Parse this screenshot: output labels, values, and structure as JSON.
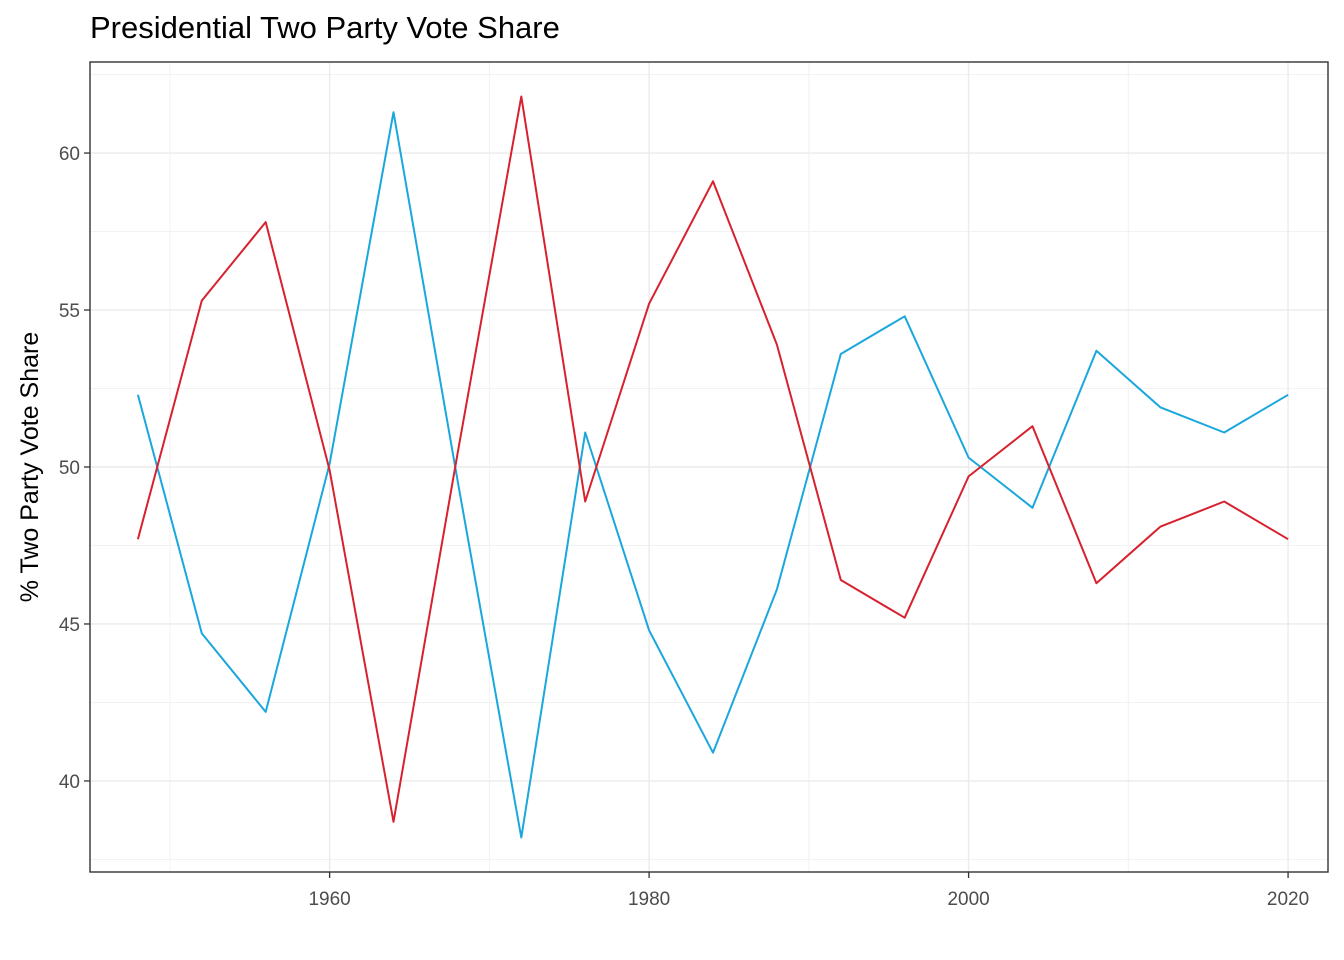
{
  "chart_data": {
    "type": "line",
    "title": "Presidential Two Party Vote Share",
    "xlabel": "",
    "ylabel": "% Two Party Vote Share",
    "xlim": [
      1945,
      2022.5
    ],
    "ylim": [
      37.1,
      62.9
    ],
    "x_ticks": [
      1960,
      1980,
      2000,
      2020
    ],
    "y_ticks": [
      40,
      45,
      50,
      55,
      60
    ],
    "grid": true,
    "legend": "none",
    "x": [
      1948,
      1952,
      1956,
      1960,
      1964,
      1968,
      1972,
      1976,
      1980,
      1984,
      1988,
      1992,
      1996,
      2000,
      2004,
      2008,
      2012,
      2016,
      2020
    ],
    "series": [
      {
        "color": "#1aa7dd",
        "values": [
          52.3,
          44.7,
          42.2,
          50.1,
          61.3,
          49.6,
          38.2,
          51.1,
          44.8,
          40.9,
          46.1,
          53.6,
          54.8,
          50.3,
          48.7,
          53.7,
          51.9,
          51.1,
          52.3
        ]
      },
      {
        "color": "#d7212e",
        "values": [
          47.7,
          55.3,
          57.8,
          49.9,
          38.7,
          50.4,
          61.8,
          48.9,
          55.2,
          59.1,
          53.9,
          46.4,
          45.2,
          49.7,
          51.3,
          46.3,
          48.1,
          48.9,
          47.7
        ]
      }
    ]
  }
}
